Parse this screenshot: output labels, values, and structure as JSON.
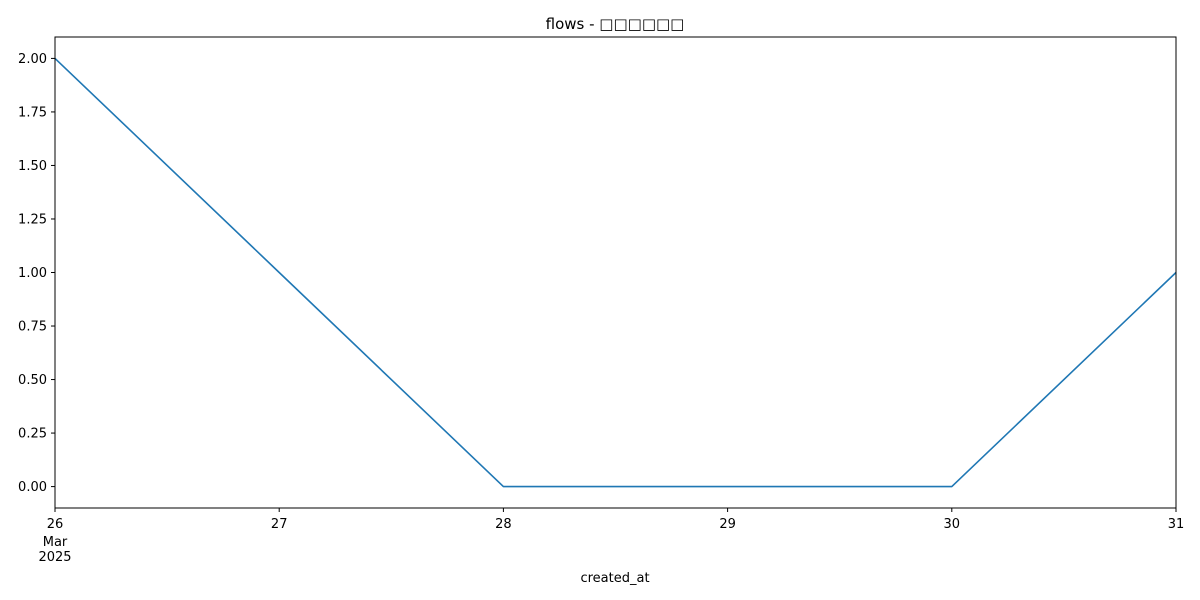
{
  "chart_data": {
    "type": "line",
    "title": "flows - □□□□□□",
    "xlabel": "created_at",
    "ylabel": "",
    "x": [
      "2025-03-26",
      "2025-03-27",
      "2025-03-28",
      "2025-03-29",
      "2025-03-30",
      "2025-03-31"
    ],
    "x_tick_labels": [
      "26",
      "27",
      "28",
      "29",
      "30",
      "31"
    ],
    "x_secondary_label": [
      "Mar",
      "2025"
    ],
    "ylim": [
      -0.1,
      2.1
    ],
    "y_ticks": [
      "0.00",
      "0.25",
      "0.50",
      "0.75",
      "1.00",
      "1.25",
      "1.50",
      "1.75",
      "2.00"
    ],
    "series": [
      {
        "values": [
          2,
          1,
          0,
          0,
          0,
          1
        ],
        "color": "#1f77b4"
      }
    ],
    "grid": false,
    "legend": "none"
  }
}
